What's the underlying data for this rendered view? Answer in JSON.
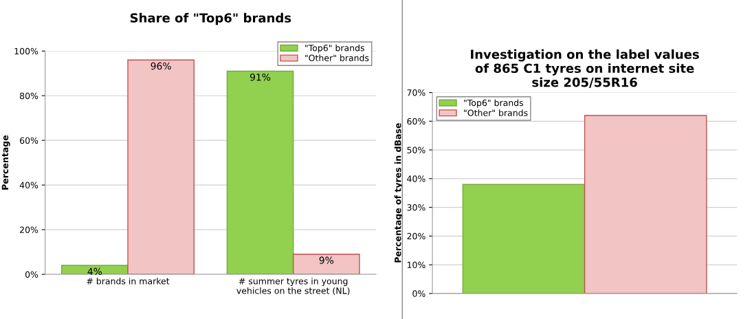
{
  "chart_data": [
    {
      "type": "bar",
      "title": "Share of \"Top6\" brands",
      "ylabel": "Percentage",
      "categories": [
        "# brands in market",
        "# summer tyres in young\nvehicles on the street (NL)"
      ],
      "series": [
        {
          "name": "\"Top6\" brands",
          "color": "#92d050",
          "values": [
            4,
            91
          ],
          "value_labels": [
            "4%",
            "91%"
          ]
        },
        {
          "name": "\"Other\" brands",
          "color": "#f2c4c4",
          "values": [
            96,
            9
          ],
          "value_labels": [
            "96%",
            "9%"
          ]
        }
      ],
      "ylim": [
        0,
        100
      ],
      "yticks": [
        {
          "value": 0,
          "label": "0%"
        },
        {
          "value": 20,
          "label": "20%"
        },
        {
          "value": 40,
          "label": "40%"
        },
        {
          "value": 60,
          "label": "60%"
        },
        {
          "value": 80,
          "label": "80%"
        },
        {
          "value": 100,
          "label": "100%"
        }
      ],
      "grid": "y",
      "legend": "top right"
    },
    {
      "type": "bar",
      "title": "Investigation on the label values\nof 865 C1 tyres on internet site\nsize 205/55R16",
      "ylabel": "Percentage of tyres in dBase",
      "categories": [
        null
      ],
      "series": [
        {
          "name": "\"Top6\" brands",
          "color": "#92d050",
          "values": [
            38
          ]
        },
        {
          "name": "\"Other\" brands",
          "color": "#f2c4c4",
          "values": [
            62
          ]
        }
      ],
      "ylim": [
        0,
        70
      ],
      "yticks": [
        {
          "value": 0,
          "label": "0%"
        },
        {
          "value": 10,
          "label": "10%"
        },
        {
          "value": 20,
          "label": "20%"
        },
        {
          "value": 30,
          "label": "30%"
        },
        {
          "value": 40,
          "label": "40%"
        },
        {
          "value": 50,
          "label": "50%"
        },
        {
          "value": 60,
          "label": "60%"
        },
        {
          "value": 70,
          "label": "70%"
        }
      ],
      "grid": "y",
      "legend": "top left"
    }
  ]
}
